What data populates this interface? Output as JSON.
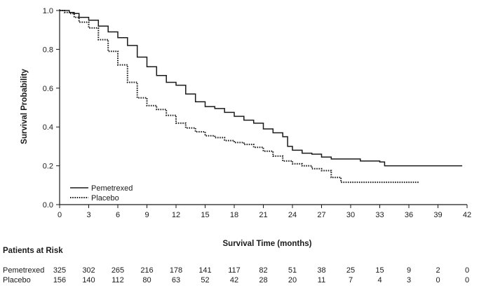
{
  "chart_data": {
    "type": "line",
    "title": "",
    "xlabel": "Survival Time (months)",
    "ylabel": "Survival Probability",
    "xlim": [
      0,
      42
    ],
    "ylim": [
      0,
      1.0
    ],
    "x_ticks": [
      0,
      3,
      6,
      9,
      12,
      15,
      18,
      21,
      24,
      27,
      30,
      33,
      36,
      39,
      42
    ],
    "y_ticks": [
      0.0,
      0.2,
      0.4,
      0.6,
      0.8,
      1.0
    ],
    "y_tick_labels": [
      "0.0",
      "0.2",
      "0.4",
      "0.6",
      "0.8",
      "1.0"
    ],
    "grid": false,
    "legend_position": "bottom-left",
    "series": [
      {
        "name": "Pemetrexed",
        "style": "solid",
        "points": [
          [
            0,
            1.0
          ],
          [
            0.5,
            1.0
          ],
          [
            1,
            0.99
          ],
          [
            1.5,
            0.985
          ],
          [
            2,
            0.965
          ],
          [
            3,
            0.95
          ],
          [
            4,
            0.92
          ],
          [
            5,
            0.89
          ],
          [
            6,
            0.86
          ],
          [
            7,
            0.82
          ],
          [
            8,
            0.76
          ],
          [
            9,
            0.71
          ],
          [
            10,
            0.665
          ],
          [
            11,
            0.63
          ],
          [
            12,
            0.615
          ],
          [
            13,
            0.57
          ],
          [
            14,
            0.53
          ],
          [
            15,
            0.505
          ],
          [
            16,
            0.495
          ],
          [
            17,
            0.475
          ],
          [
            18,
            0.455
          ],
          [
            19,
            0.435
          ],
          [
            20,
            0.42
          ],
          [
            21,
            0.39
          ],
          [
            22,
            0.37
          ],
          [
            23,
            0.35
          ],
          [
            23.5,
            0.3
          ],
          [
            24,
            0.28
          ],
          [
            25,
            0.265
          ],
          [
            26,
            0.26
          ],
          [
            27,
            0.245
          ],
          [
            28,
            0.235
          ],
          [
            30,
            0.235
          ],
          [
            31,
            0.225
          ],
          [
            33,
            0.22
          ],
          [
            33.5,
            0.2
          ],
          [
            41.5,
            0.2
          ]
        ]
      },
      {
        "name": "Placebo",
        "style": "dotted",
        "points": [
          [
            0,
            1.0
          ],
          [
            0.5,
            0.99
          ],
          [
            1,
            0.985
          ],
          [
            1.5,
            0.965
          ],
          [
            2,
            0.94
          ],
          [
            3,
            0.91
          ],
          [
            4,
            0.85
          ],
          [
            5,
            0.79
          ],
          [
            6,
            0.72
          ],
          [
            7,
            0.63
          ],
          [
            8,
            0.55
          ],
          [
            9,
            0.51
          ],
          [
            10,
            0.49
          ],
          [
            11,
            0.46
          ],
          [
            12,
            0.42
          ],
          [
            13,
            0.395
          ],
          [
            14,
            0.375
          ],
          [
            15,
            0.355
          ],
          [
            16,
            0.345
          ],
          [
            17,
            0.33
          ],
          [
            18,
            0.32
          ],
          [
            19,
            0.31
          ],
          [
            20,
            0.295
          ],
          [
            21,
            0.275
          ],
          [
            22,
            0.25
          ],
          [
            23,
            0.225
          ],
          [
            24,
            0.21
          ],
          [
            25,
            0.2
          ],
          [
            26,
            0.185
          ],
          [
            27,
            0.175
          ],
          [
            28,
            0.14
          ],
          [
            29,
            0.115
          ],
          [
            37,
            0.115
          ]
        ]
      }
    ],
    "risk_table": {
      "title": "Patients at Risk",
      "times": [
        0,
        3,
        6,
        9,
        12,
        15,
        18,
        21,
        24,
        27,
        30,
        33,
        36,
        39,
        42
      ],
      "rows": [
        {
          "label": "Pemetrexed",
          "values": [
            "325",
            "302",
            "265",
            "216",
            "178",
            "141",
            "117",
            "82",
            "51",
            "38",
            "25",
            "15",
            "9",
            "2",
            "0"
          ]
        },
        {
          "label": "Placebo",
          "values": [
            "156",
            "140",
            "112",
            "80",
            "63",
            "52",
            "42",
            "28",
            "20",
            "11",
            "7",
            "4",
            "3",
            "0",
            "0"
          ]
        }
      ]
    }
  }
}
